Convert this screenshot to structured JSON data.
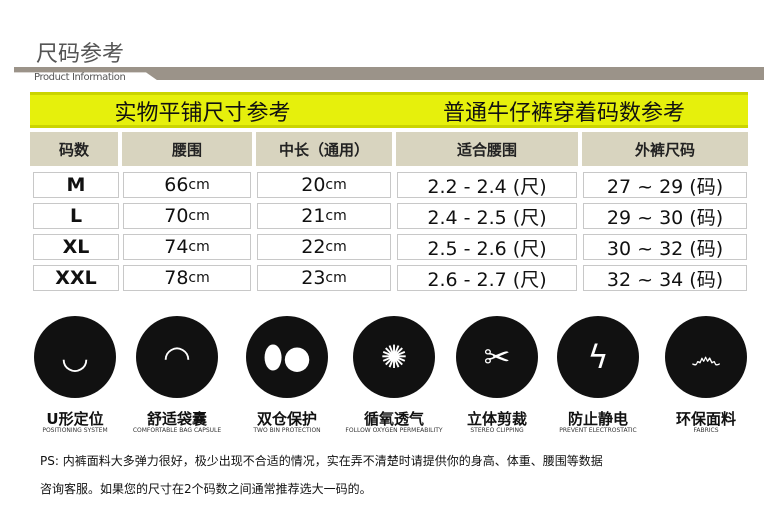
{
  "header": {
    "title": "尺码参考",
    "subtitle": "Product Information"
  },
  "banner": {
    "left": "实物平铺尺寸参考",
    "right": "普通牛仔裤穿着码数参考"
  },
  "columns": [
    "码数",
    "腰围",
    "中长（通用）",
    "适合腰围",
    "外裤尺码"
  ],
  "rows": [
    {
      "size": "M",
      "waist": "66",
      "waist_unit": "cm",
      "length": "20",
      "length_unit": "cm",
      "fit_waist": "2.2 - 2.4 (尺)",
      "pants": "27 ~ 29 (码)"
    },
    {
      "size": "L",
      "waist": "70",
      "waist_unit": "cm",
      "length": "21",
      "length_unit": "cm",
      "fit_waist": "2.4 - 2.5 (尺)",
      "pants": "29 ~ 30 (码)"
    },
    {
      "size": "XL",
      "waist": "74",
      "waist_unit": "cm",
      "length": "22",
      "length_unit": "cm",
      "fit_waist": "2.5 - 2.6 (尺)",
      "pants": "30 ~ 32 (码)"
    },
    {
      "size": "XXL",
      "waist": "78",
      "waist_unit": "cm",
      "length": "23",
      "length_unit": "cm",
      "fit_waist": "2.6 - 2.7 (尺)",
      "pants": "32 ~ 34 (码)"
    }
  ],
  "features": [
    {
      "icon": "u-shape-icon",
      "glyph": "◡",
      "label": "U形定位",
      "sub": "POSITIONING SYSTEM"
    },
    {
      "icon": "capsule-bag-icon",
      "glyph": "◠",
      "label": "舒适袋囊",
      "sub": "COMFORTABLE BAG CAPSULE"
    },
    {
      "icon": "two-bin-icon",
      "glyph": "⬮●",
      "label": "双仓保护",
      "sub": "TWO BIN PROTECTION"
    },
    {
      "icon": "ventilation-icon",
      "glyph": "✺",
      "label": "循氧透气",
      "sub": "FOLLOW OXYGEN PERMEABILITY"
    },
    {
      "icon": "scissors-icon",
      "glyph": "✂",
      "label": "立体剪裁",
      "sub": "STEREO CLIPPING"
    },
    {
      "icon": "lightning-icon",
      "glyph": "ϟ",
      "label": "防止静电",
      "sub": "PREVENT ELECTROSTATIC"
    },
    {
      "icon": "fabric-swirl-icon",
      "glyph": "෴",
      "label": "环保面料",
      "sub": "FABRICS"
    }
  ],
  "note": {
    "line1": "PS: 内裤面料大多弹力很好，极少出现不合适的情况，实在弄不清楚时请提供你的身高、体重、腰围等数据",
    "line2": "咨询客服。如果您的尺寸在2个码数之间通常推荐选大一码的。"
  }
}
